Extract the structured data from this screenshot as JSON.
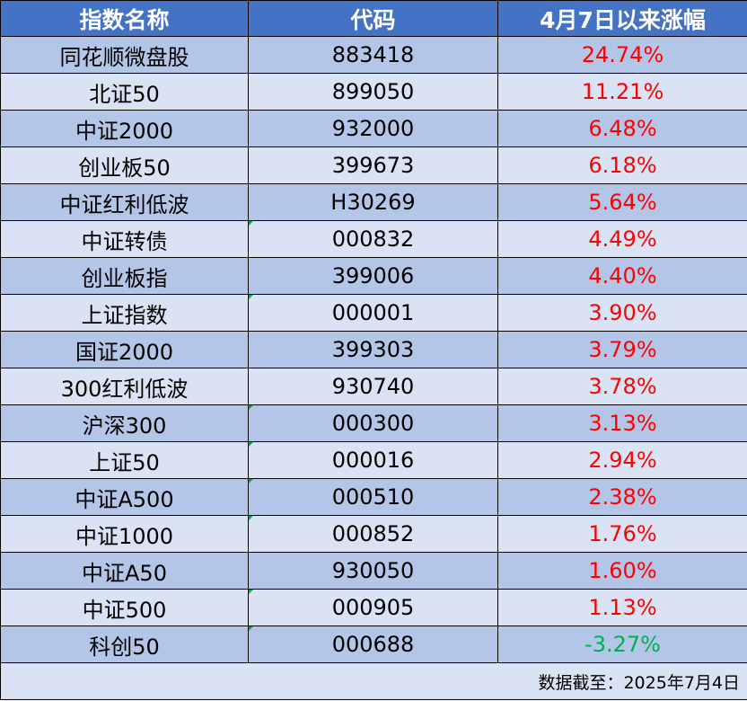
{
  "headers": [
    "指数名称",
    "代码",
    "4月7日以来涨幅"
  ],
  "rows": [
    {
      "name": "同花顺微盘股",
      "code": "883418",
      "change": "24.74%",
      "direction": "up"
    },
    {
      "name": "北证50",
      "code": "899050",
      "change": "11.21%",
      "direction": "up"
    },
    {
      "name": "中证2000",
      "code": "932000",
      "change": "6.48%",
      "direction": "up"
    },
    {
      "name": "创业板50",
      "code": "399673",
      "change": "6.18%",
      "direction": "up"
    },
    {
      "name": "中证红利低波",
      "code": "H30269",
      "change": "5.64%",
      "direction": "up"
    },
    {
      "name": "中证转债",
      "code": "000832",
      "change": "4.49%",
      "direction": "up",
      "code_marker": true
    },
    {
      "name": "创业板指",
      "code": "399006",
      "change": "4.40%",
      "direction": "up"
    },
    {
      "name": "上证指数",
      "code": "000001",
      "change": "3.90%",
      "direction": "up",
      "code_marker": true
    },
    {
      "name": "国证2000",
      "code": "399303",
      "change": "3.79%",
      "direction": "up"
    },
    {
      "name": "300红利低波",
      "code": "930740",
      "change": "3.78%",
      "direction": "up"
    },
    {
      "name": "沪深300",
      "code": "000300",
      "change": "3.13%",
      "direction": "up",
      "code_marker": true
    },
    {
      "name": "上证50",
      "code": "000016",
      "change": "2.94%",
      "direction": "up",
      "code_marker": true
    },
    {
      "name": "中证A500",
      "code": "000510",
      "change": "2.38%",
      "direction": "up",
      "code_marker": true
    },
    {
      "name": "中证1000",
      "code": "000852",
      "change": "1.76%",
      "direction": "up",
      "code_marker": true
    },
    {
      "name": "中证A50",
      "code": "930050",
      "change": "1.60%",
      "direction": "up"
    },
    {
      "name": "中证500",
      "code": "000905",
      "change": "1.13%",
      "direction": "up",
      "code_marker": true
    },
    {
      "name": "科创50",
      "code": "000688",
      "change": "-3.27%",
      "direction": "down",
      "code_marker": true
    }
  ],
  "footer": {
    "note": "数据截至：2025年7月4日"
  },
  "colors": {
    "header_bg": "#4472c4",
    "header_text": "#ffffff",
    "row_odd_bg": "#b4c6e7",
    "row_even_bg": "#dae3f3",
    "positive": "#ff0000",
    "negative": "#00b050",
    "cell_marker": "#00b050"
  }
}
